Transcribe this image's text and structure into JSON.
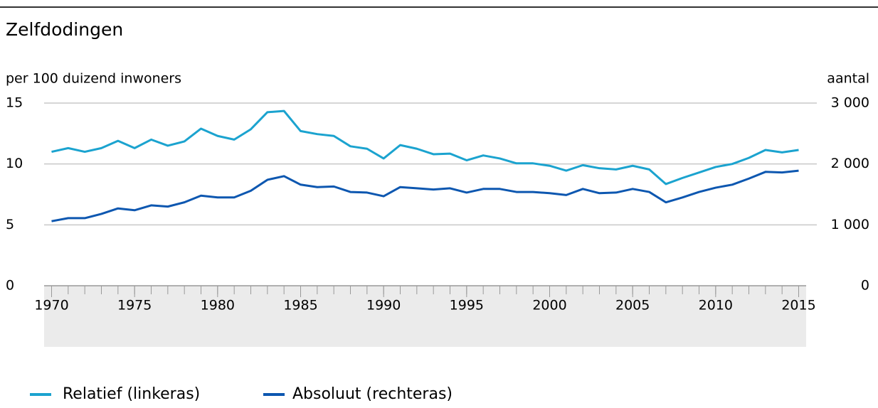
{
  "chart_data": {
    "type": "line",
    "title": "Zelfdodingen",
    "y_label": "per 100 duizend inwoners",
    "y2_label": "aantal",
    "x": [
      1970,
      1971,
      1972,
      1973,
      1974,
      1975,
      1976,
      1977,
      1978,
      1979,
      1980,
      1981,
      1982,
      1983,
      1984,
      1985,
      1986,
      1987,
      1988,
      1989,
      1990,
      1991,
      1992,
      1993,
      1994,
      1995,
      1996,
      1997,
      1998,
      1999,
      2000,
      2001,
      2002,
      2003,
      2004,
      2005,
      2006,
      2007,
      2008,
      2009,
      2010,
      2011,
      2012,
      2013,
      2014,
      2015
    ],
    "xlim": [
      1969.55,
      2015.45
    ],
    "xticks": [
      1970,
      1975,
      1980,
      1985,
      1990,
      1995,
      2000,
      2005,
      2010,
      2015
    ],
    "ylim": [
      0,
      15
    ],
    "yticks": [
      0,
      5,
      10,
      15
    ],
    "y2lim": [
      0,
      3000
    ],
    "y2ticks": [
      0,
      {
        "value": 1000,
        "label": "1 000"
      },
      {
        "value": 2000,
        "label": "2 000"
      },
      {
        "value": 3000,
        "label": "3 000"
      }
    ],
    "grid": true,
    "series": [
      {
        "name": "Relatief (linkeras)",
        "color": "#1ba3cf",
        "axis": "y",
        "values": [
          11.0,
          11.3,
          11.0,
          11.3,
          11.9,
          11.3,
          12.0,
          11.5,
          11.85,
          12.9,
          12.3,
          12.0,
          12.85,
          14.25,
          14.35,
          12.7,
          12.45,
          12.3,
          11.45,
          11.25,
          10.45,
          11.55,
          11.25,
          10.8,
          10.85,
          10.3,
          10.7,
          10.45,
          10.05,
          10.05,
          9.85,
          9.45,
          9.9,
          9.65,
          9.55,
          9.85,
          9.55,
          8.35,
          8.85,
          9.3,
          9.75,
          10.0,
          10.5,
          11.15,
          10.95,
          11.15
        ]
      },
      {
        "name": "Absoluut (rechteras)",
        "color": "#0d57b0",
        "axis": "y2",
        "values": [
          1060,
          1110,
          1110,
          1180,
          1270,
          1240,
          1320,
          1300,
          1370,
          1480,
          1450,
          1450,
          1560,
          1740,
          1800,
          1660,
          1620,
          1630,
          1540,
          1530,
          1470,
          1620,
          1600,
          1580,
          1600,
          1530,
          1590,
          1590,
          1540,
          1540,
          1520,
          1490,
          1590,
          1520,
          1530,
          1590,
          1540,
          1370,
          1450,
          1540,
          1610,
          1660,
          1760,
          1870,
          1860,
          1890
        ]
      }
    ]
  }
}
